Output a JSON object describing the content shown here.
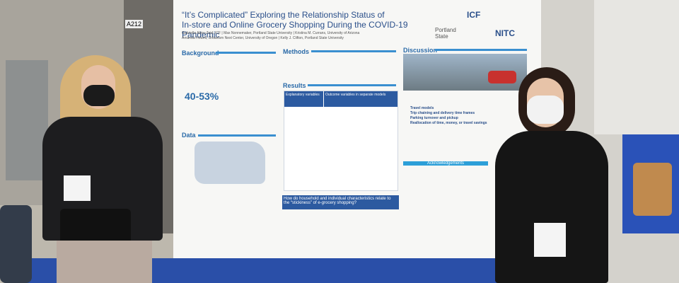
{
  "booth_sign": "A212",
  "poster": {
    "title": [
      "“It’s Complicated” Exploring the Relationship Status of",
      "In-store and Online Grocery Shopping During the COVID-19 Pandemic"
    ],
    "authors": [
      "Gabriella Abou-Zeid, ICF | Max Nonnemaker, Portland State University | Kristina M. Currans, University of Arizona",
      "Amanda Howell, Urbanism Next Center, University of Oregon | Kelly J. Clifton, Portland State University"
    ],
    "logos": [
      "ICF",
      "Portland State",
      "NITC"
    ],
    "sections": {
      "background": "Background",
      "methods": "Methods",
      "discussion": "Discussion",
      "results": "Results",
      "data": "Data",
      "acknowledgements": "Acknowledgements"
    },
    "stat": "40-53%",
    "table_header": [
      "Explanatory variables",
      "Outcome variables in separate models"
    ],
    "results_question": "How do household and individual characteristics relate to the “stickiness” of e-grocery shopping?",
    "discussion_bullets": [
      "Travel models",
      "Trip chaining and delivery time frames",
      "Parking turnover and pickup",
      "Reallocation of time, money, or travel savings"
    ]
  }
}
